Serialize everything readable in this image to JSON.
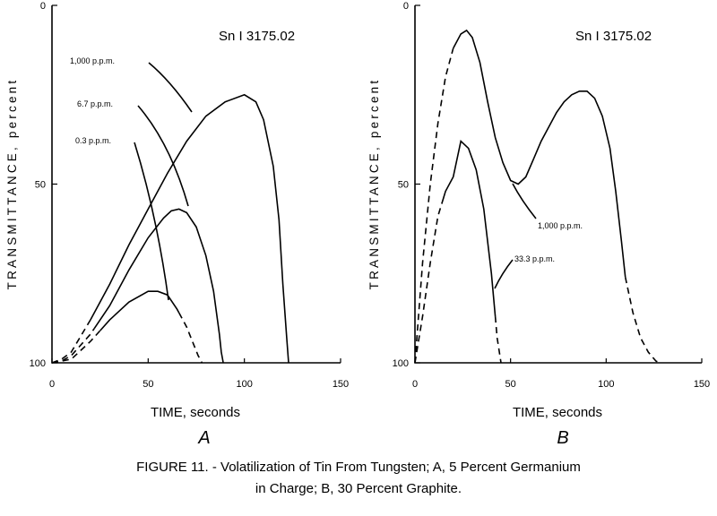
{
  "caption": {
    "line1": "FIGURE 11. - Volatilization of Tin From Tungsten; A, 5 Percent Germanium",
    "line2": "in Charge; B, 30 Percent Graphite."
  },
  "chart_data": [
    {
      "type": "line",
      "panel": "A",
      "spectral_line": "Sn I 3175.02",
      "xlabel": "TIME, seconds",
      "ylabel": "TRANSMITTANCE, percent",
      "xlim": [
        0,
        150
      ],
      "ylim": [
        0,
        100
      ],
      "y_inverted": true,
      "x_ticks": [
        0,
        50,
        100,
        150
      ],
      "y_ticks": [
        0,
        50,
        100
      ],
      "series": [
        {
          "name": "1,000 p.p.m.",
          "x": [
            0,
            5,
            10,
            20,
            30,
            40,
            50,
            60,
            70,
            80,
            90,
            100,
            106,
            110,
            115,
            118,
            120,
            122,
            123
          ],
          "y": [
            100,
            99,
            97,
            88,
            78,
            67,
            57,
            47,
            38,
            31,
            27,
            25,
            27,
            32,
            45,
            60,
            78,
            93,
            100
          ],
          "dashed_until_x": 20,
          "dashed_from_x": null
        },
        {
          "name": "6.7 p.p.m.",
          "x": [
            0,
            5,
            10,
            20,
            30,
            40,
            50,
            58,
            62,
            66,
            70,
            75,
            80,
            84,
            87,
            88,
            89
          ],
          "y": [
            100,
            99.5,
            98,
            92,
            84,
            74,
            65,
            59.5,
            57.5,
            57,
            58,
            62,
            70,
            80,
            92,
            97,
            100
          ],
          "dashed_until_x": 22,
          "dashed_from_x": null
        },
        {
          "name": "0.3 p.p.m.",
          "x": [
            0,
            5,
            10,
            20,
            30,
            40,
            50,
            55,
            60,
            65,
            70,
            73,
            76,
            78
          ],
          "y": [
            100,
            99.5,
            99,
            94,
            88,
            83,
            80,
            80,
            81,
            85,
            90,
            94,
            98,
            100
          ],
          "dashed_until_x": 25,
          "dashed_from_x": 66
        }
      ]
    },
    {
      "type": "line",
      "panel": "B",
      "spectral_line": "Sn I 3175.02",
      "xlabel": "TIME, seconds",
      "ylabel": "TRANSMITTANCE, percent",
      "xlim": [
        0,
        150
      ],
      "ylim": [
        0,
        100
      ],
      "y_inverted": true,
      "x_ticks": [
        0,
        50,
        100,
        150
      ],
      "y_ticks": [
        0,
        50,
        100
      ],
      "series": [
        {
          "name": "1,000 p.p.m.",
          "x": [
            0,
            4,
            8,
            12,
            16,
            20,
            24,
            27,
            30,
            34,
            38,
            42,
            46,
            50,
            54,
            58,
            62,
            66,
            70,
            74,
            78,
            82,
            86,
            90,
            94,
            98,
            102,
            105,
            108,
            110,
            114,
            118,
            122,
            126,
            128
          ],
          "y": [
            100,
            72,
            50,
            33,
            20,
            12,
            8,
            7,
            9,
            16,
            27,
            37,
            44,
            49,
            50,
            48,
            43,
            38,
            34,
            30,
            27,
            25,
            24,
            24,
            26,
            31,
            40,
            52,
            66,
            76,
            86,
            93,
            97,
            99.5,
            100
          ],
          "dashed_until_x": 20,
          "dashed_from_x": 110
        },
        {
          "name": "33.3 p.p.m.",
          "x": [
            0,
            4,
            8,
            12,
            16,
            20,
            24,
            28,
            32,
            36,
            40,
            43,
            45
          ],
          "y": [
            100,
            87,
            72,
            59,
            52,
            48,
            38,
            40,
            46,
            57,
            75,
            93,
            100
          ],
          "dashed_until_x": 14,
          "dashed_from_x": 42
        }
      ]
    }
  ]
}
